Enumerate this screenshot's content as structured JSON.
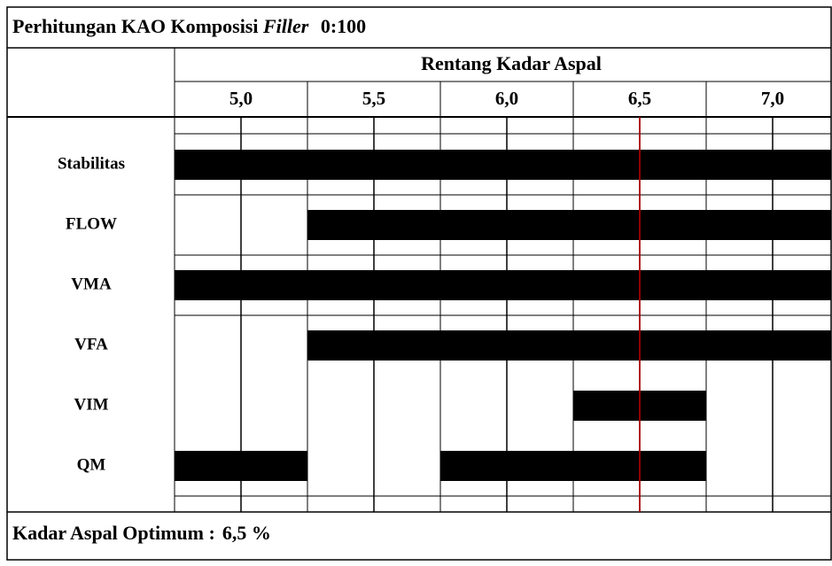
{
  "title": {
    "text": "Perhitungan KAO Komposisi",
    "italic": "Filler",
    "suffix": "0:100"
  },
  "header": "Rentang Kadar Aspal",
  "xlim": [
    4.75,
    7.25
  ],
  "columns": [
    {
      "value": 5.0,
      "label": "5,0"
    },
    {
      "value": 5.5,
      "label": "5,5"
    },
    {
      "value": 6.0,
      "label": "6,0"
    },
    {
      "value": 6.5,
      "label": "6,5"
    },
    {
      "value": 7.0,
      "label": "7,0"
    }
  ],
  "rows": [
    {
      "label": "Stabilitas",
      "bars": [
        [
          4.75,
          7.25
        ]
      ]
    },
    {
      "label": "FLOW",
      "bars": [
        [
          5.25,
          7.25
        ]
      ]
    },
    {
      "label": "VMA",
      "bars": [
        [
          4.75,
          7.25
        ]
      ]
    },
    {
      "label": "VFA",
      "bars": [
        [
          5.25,
          7.25
        ]
      ]
    },
    {
      "label": "VIM",
      "bars": [
        [
          6.25,
          6.75
        ]
      ]
    },
    {
      "label": "QM",
      "bars": [
        [
          4.75,
          5.25
        ],
        [
          5.75,
          6.75
        ]
      ]
    }
  ],
  "optimum": 6.5,
  "footer": {
    "label": "Kadar Aspal Optimum :",
    "value": "6,5 %"
  }
}
